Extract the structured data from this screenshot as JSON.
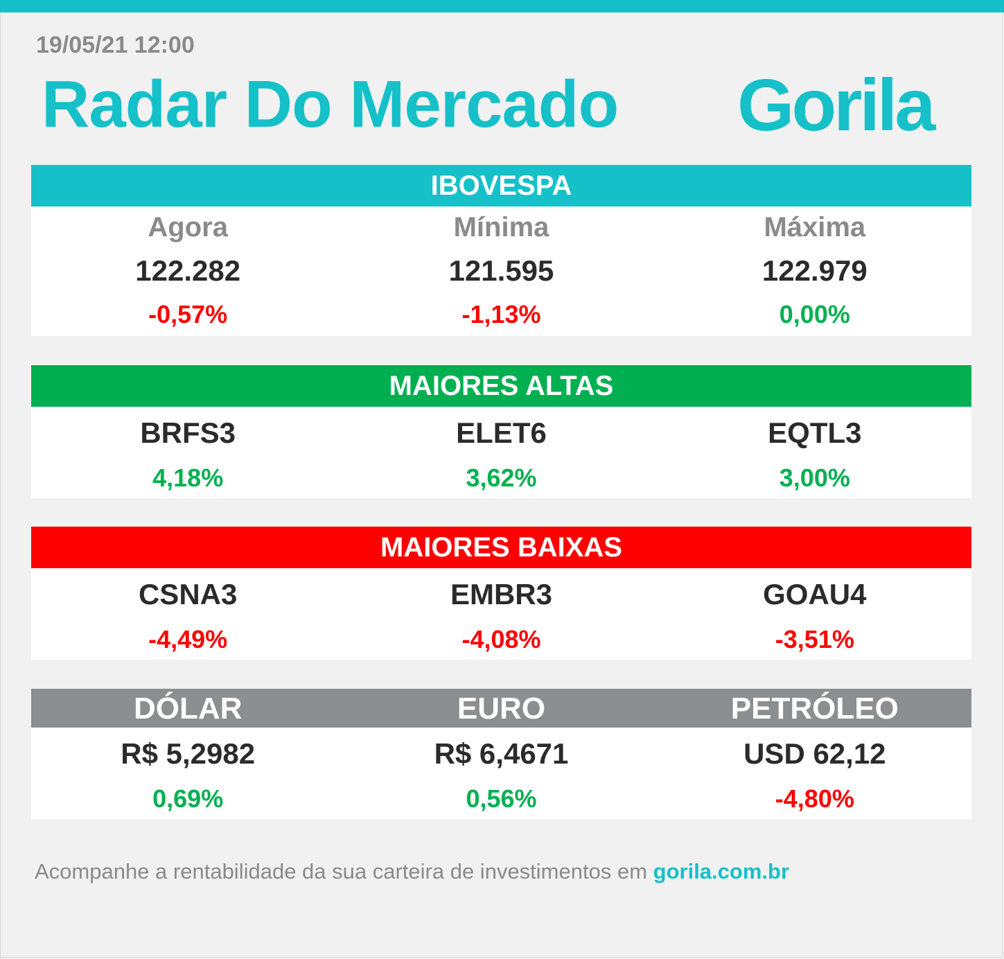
{
  "datetime": "19/05/21 12:00",
  "title": "Radar Do Mercado",
  "logo": "Gorila",
  "colors": {
    "accent": "#16c0c8",
    "up": "#00b050",
    "down": "#ff0000",
    "neutral": "#8c8f90"
  },
  "ibovespa": {
    "header": "IBOVESPA",
    "items": [
      {
        "label": "Agora",
        "value": "122.282",
        "change": "-0,57%"
      },
      {
        "label": "Mínima",
        "value": "121.595",
        "change": "-1,13%"
      },
      {
        "label": "Máxima",
        "value": "122.979",
        "change": "0,00%"
      }
    ]
  },
  "maiores_altas": {
    "header": "MAIORES ALTAS",
    "items": [
      {
        "ticker": "BRFS3",
        "change": "4,18%"
      },
      {
        "ticker": "ELET6",
        "change": "3,62%"
      },
      {
        "ticker": "EQTL3",
        "change": "3,00%"
      }
    ]
  },
  "maiores_baixas": {
    "header": "MAIORES BAIXAS",
    "items": [
      {
        "ticker": "CSNA3",
        "change": "-4,49%"
      },
      {
        "ticker": "EMBR3",
        "change": "-4,08%"
      },
      {
        "ticker": "GOAU4",
        "change": "-3,51%"
      }
    ]
  },
  "moedas": {
    "items": [
      {
        "label": "DÓLAR",
        "value": "R$ 5,2982",
        "change": "0,69%"
      },
      {
        "label": "EURO",
        "value": "R$ 6,4671",
        "change": "0,56%"
      },
      {
        "label": "PETRÓLEO",
        "value": "USD 62,12",
        "change": "-4,80%"
      }
    ]
  },
  "footer": {
    "text": "Acompanhe a rentabilidade da sua carteira de investimentos em ",
    "link": "gorila.com.br"
  }
}
